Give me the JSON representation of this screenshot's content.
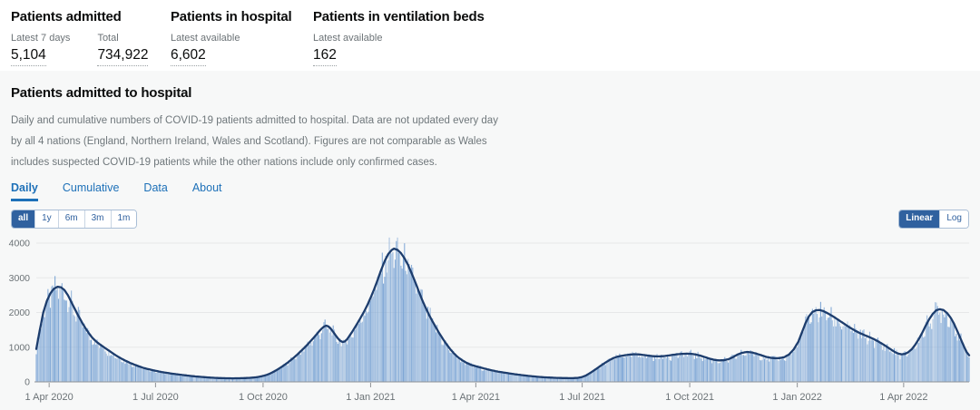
{
  "header": {
    "stats": [
      {
        "title": "Patients admitted",
        "metrics": [
          {
            "label": "Latest 7 days",
            "value": "5,104"
          },
          {
            "label": "Total",
            "value": "734,922"
          }
        ]
      },
      {
        "title": "Patients in hospital",
        "metrics": [
          {
            "label": "Latest available",
            "value": "6,602"
          }
        ]
      },
      {
        "title": "Patients in ventilation beds",
        "metrics": [
          {
            "label": "Latest available",
            "value": "162"
          }
        ]
      }
    ]
  },
  "section": {
    "title": "Patients admitted to hospital",
    "description": "Daily and cumulative numbers of COVID-19 patients admitted to hospital. Data are not updated every day by all 4 nations (England, Northern Ireland, Wales and Scotland). Figures are not comparable as Wales includes suspected COVID-19 patients while the other nations include only confirmed cases.",
    "tabs": [
      {
        "label": "Daily",
        "active": true
      },
      {
        "label": "Cumulative",
        "active": false
      },
      {
        "label": "Data",
        "active": false
      },
      {
        "label": "About",
        "active": false
      }
    ],
    "range_buttons": [
      {
        "label": "all",
        "active": true
      },
      {
        "label": "1y",
        "active": false
      },
      {
        "label": "6m",
        "active": false
      },
      {
        "label": "3m",
        "active": false
      },
      {
        "label": "1m",
        "active": false
      }
    ],
    "scale_buttons": [
      {
        "label": "Linear",
        "active": true
      },
      {
        "label": "Log",
        "active": false
      }
    ]
  },
  "chart_data": {
    "type": "bar",
    "description": "Daily COVID-19 hospital admissions (bars) with 7-day rolling average (line)",
    "ylim": [
      0,
      4000
    ],
    "yticks": [
      0,
      1000,
      2000,
      3000,
      4000
    ],
    "x_day0_date": "21 Mar 2020",
    "x_end_day": 798,
    "xticks": [
      {
        "day": 11,
        "label": "1 Apr 2020"
      },
      {
        "day": 102,
        "label": "1 Jul 2020"
      },
      {
        "day": 194,
        "label": "1 Oct 2020"
      },
      {
        "day": 286,
        "label": "1 Jan 2021"
      },
      {
        "day": 376,
        "label": "1 Apr 2021"
      },
      {
        "day": 467,
        "label": "1 Jul 2021"
      },
      {
        "day": 559,
        "label": "1 Oct 2021"
      },
      {
        "day": 651,
        "label": "1 Jan 2022"
      },
      {
        "day": 742,
        "label": "1 Apr 2022"
      }
    ],
    "grid": "horizontal",
    "legend": "none",
    "colors": {
      "bar": "#7ca5d5",
      "line": "#1d3d6d",
      "grid": "#e7e8e9",
      "axis": "#8f9296",
      "axis_text": "#6b7276"
    },
    "series": [
      {
        "name": "7-day average",
        "type": "line",
        "points": [
          [
            0,
            950
          ],
          [
            3,
            1500
          ],
          [
            6,
            2000
          ],
          [
            9,
            2330
          ],
          [
            12,
            2550
          ],
          [
            15,
            2680
          ],
          [
            18,
            2740
          ],
          [
            21,
            2730
          ],
          [
            24,
            2650
          ],
          [
            27,
            2500
          ],
          [
            30,
            2300
          ],
          [
            33,
            2100
          ],
          [
            36,
            1900
          ],
          [
            39,
            1720
          ],
          [
            42,
            1550
          ],
          [
            45,
            1400
          ],
          [
            48,
            1270
          ],
          [
            51,
            1170
          ],
          [
            54,
            1090
          ],
          [
            57,
            1020
          ],
          [
            60,
            950
          ],
          [
            63,
            880
          ],
          [
            66,
            810
          ],
          [
            69,
            745
          ],
          [
            72,
            685
          ],
          [
            76,
            615
          ],
          [
            80,
            550
          ],
          [
            84,
            495
          ],
          [
            88,
            445
          ],
          [
            92,
            400
          ],
          [
            96,
            365
          ],
          [
            100,
            335
          ],
          [
            104,
            305
          ],
          [
            108,
            280
          ],
          [
            112,
            258
          ],
          [
            116,
            238
          ],
          [
            120,
            220
          ],
          [
            124,
            203
          ],
          [
            128,
            188
          ],
          [
            132,
            172
          ],
          [
            136,
            158
          ],
          [
            140,
            146
          ],
          [
            144,
            135
          ],
          [
            148,
            125
          ],
          [
            152,
            117
          ],
          [
            156,
            111
          ],
          [
            160,
            107
          ],
          [
            164,
            104
          ],
          [
            168,
            103
          ],
          [
            172,
            104
          ],
          [
            176,
            107
          ],
          [
            180,
            112
          ],
          [
            184,
            120
          ],
          [
            188,
            133
          ],
          [
            191,
            150
          ],
          [
            194,
            172
          ],
          [
            197,
            200
          ],
          [
            200,
            240
          ],
          [
            204,
            310
          ],
          [
            208,
            390
          ],
          [
            212,
            480
          ],
          [
            216,
            580
          ],
          [
            220,
            690
          ],
          [
            224,
            810
          ],
          [
            228,
            940
          ],
          [
            231,
            1040
          ],
          [
            234,
            1150
          ],
          [
            237,
            1260
          ],
          [
            240,
            1380
          ],
          [
            242,
            1460
          ],
          [
            244,
            1530
          ],
          [
            246,
            1590
          ],
          [
            248,
            1620
          ],
          [
            250,
            1595
          ],
          [
            252,
            1530
          ],
          [
            254,
            1440
          ],
          [
            256,
            1345
          ],
          [
            258,
            1255
          ],
          [
            260,
            1185
          ],
          [
            262,
            1150
          ],
          [
            264,
            1165
          ],
          [
            266,
            1235
          ],
          [
            268,
            1330
          ],
          [
            270,
            1430
          ],
          [
            272,
            1540
          ],
          [
            274,
            1650
          ],
          [
            277,
            1820
          ],
          [
            280,
            2000
          ],
          [
            283,
            2200
          ],
          [
            286,
            2420
          ],
          [
            289,
            2670
          ],
          [
            292,
            2940
          ],
          [
            295,
            3220
          ],
          [
            298,
            3480
          ],
          [
            301,
            3680
          ],
          [
            304,
            3800
          ],
          [
            306,
            3840
          ],
          [
            309,
            3805
          ],
          [
            312,
            3710
          ],
          [
            315,
            3560
          ],
          [
            318,
            3370
          ],
          [
            321,
            3140
          ],
          [
            324,
            2890
          ],
          [
            327,
            2630
          ],
          [
            330,
            2370
          ],
          [
            333,
            2140
          ],
          [
            336,
            1930
          ],
          [
            339,
            1740
          ],
          [
            342,
            1560
          ],
          [
            345,
            1390
          ],
          [
            348,
            1230
          ],
          [
            351,
            1080
          ],
          [
            354,
            950
          ],
          [
            357,
            830
          ],
          [
            360,
            730
          ],
          [
            364,
            630
          ],
          [
            368,
            550
          ],
          [
            372,
            490
          ],
          [
            376,
            450
          ],
          [
            380,
            415
          ],
          [
            385,
            370
          ],
          [
            390,
            330
          ],
          [
            395,
            296
          ],
          [
            400,
            268
          ],
          [
            405,
            242
          ],
          [
            410,
            218
          ],
          [
            415,
            197
          ],
          [
            420,
            177
          ],
          [
            425,
            159
          ],
          [
            430,
            144
          ],
          [
            435,
            132
          ],
          [
            440,
            123
          ],
          [
            445,
            116
          ],
          [
            450,
            111
          ],
          [
            455,
            108
          ],
          [
            459,
            108
          ],
          [
            463,
            115
          ],
          [
            467,
            140
          ],
          [
            470,
            180
          ],
          [
            473,
            240
          ],
          [
            476,
            305
          ],
          [
            479,
            375
          ],
          [
            482,
            445
          ],
          [
            485,
            515
          ],
          [
            488,
            580
          ],
          [
            491,
            640
          ],
          [
            494,
            690
          ],
          [
            497,
            725
          ],
          [
            500,
            748
          ],
          [
            504,
            770
          ],
          [
            508,
            788
          ],
          [
            512,
            797
          ],
          [
            516,
            790
          ],
          [
            520,
            773
          ],
          [
            524,
            754
          ],
          [
            528,
            740
          ],
          [
            532,
            734
          ],
          [
            536,
            741
          ],
          [
            540,
            757
          ],
          [
            544,
            776
          ],
          [
            548,
            794
          ],
          [
            552,
            807
          ],
          [
            556,
            813
          ],
          [
            560,
            809
          ],
          [
            564,
            791
          ],
          [
            568,
            757
          ],
          [
            572,
            713
          ],
          [
            576,
            669
          ],
          [
            580,
            636
          ],
          [
            584,
            619
          ],
          [
            588,
            623
          ],
          [
            592,
            652
          ],
          [
            596,
            714
          ],
          [
            600,
            790
          ],
          [
            604,
            840
          ],
          [
            608,
            862
          ],
          [
            612,
            850
          ],
          [
            616,
            815
          ],
          [
            620,
            770
          ],
          [
            624,
            725
          ],
          [
            628,
            695
          ],
          [
            632,
            680
          ],
          [
            636,
            685
          ],
          [
            640,
            715
          ],
          [
            644,
            790
          ],
          [
            648,
            940
          ],
          [
            652,
            1160
          ],
          [
            655,
            1430
          ],
          [
            658,
            1690
          ],
          [
            661,
            1890
          ],
          [
            664,
            2015
          ],
          [
            667,
            2065
          ],
          [
            670,
            2070
          ],
          [
            673,
            2045
          ],
          [
            676,
            1995
          ],
          [
            680,
            1920
          ],
          [
            684,
            1835
          ],
          [
            688,
            1745
          ],
          [
            692,
            1655
          ],
          [
            696,
            1565
          ],
          [
            700,
            1485
          ],
          [
            704,
            1415
          ],
          [
            708,
            1355
          ],
          [
            712,
            1300
          ],
          [
            716,
            1240
          ],
          [
            720,
            1170
          ],
          [
            724,
            1090
          ],
          [
            728,
            1005
          ],
          [
            731,
            935
          ],
          [
            734,
            870
          ],
          [
            737,
            820
          ],
          [
            740,
            795
          ],
          [
            743,
            805
          ],
          [
            746,
            855
          ],
          [
            749,
            945
          ],
          [
            752,
            1075
          ],
          [
            755,
            1235
          ],
          [
            758,
            1425
          ],
          [
            761,
            1625
          ],
          [
            764,
            1815
          ],
          [
            767,
            1965
          ],
          [
            770,
            2065
          ],
          [
            773,
            2095
          ],
          [
            776,
            2070
          ],
          [
            779,
            1990
          ],
          [
            782,
            1860
          ],
          [
            785,
            1680
          ],
          [
            788,
            1460
          ],
          [
            791,
            1220
          ],
          [
            794,
            990
          ],
          [
            796,
            855
          ],
          [
            798,
            765
          ]
        ]
      },
      {
        "name": "daily",
        "type": "bar",
        "derived_from": "7-day average"
      }
    ]
  }
}
